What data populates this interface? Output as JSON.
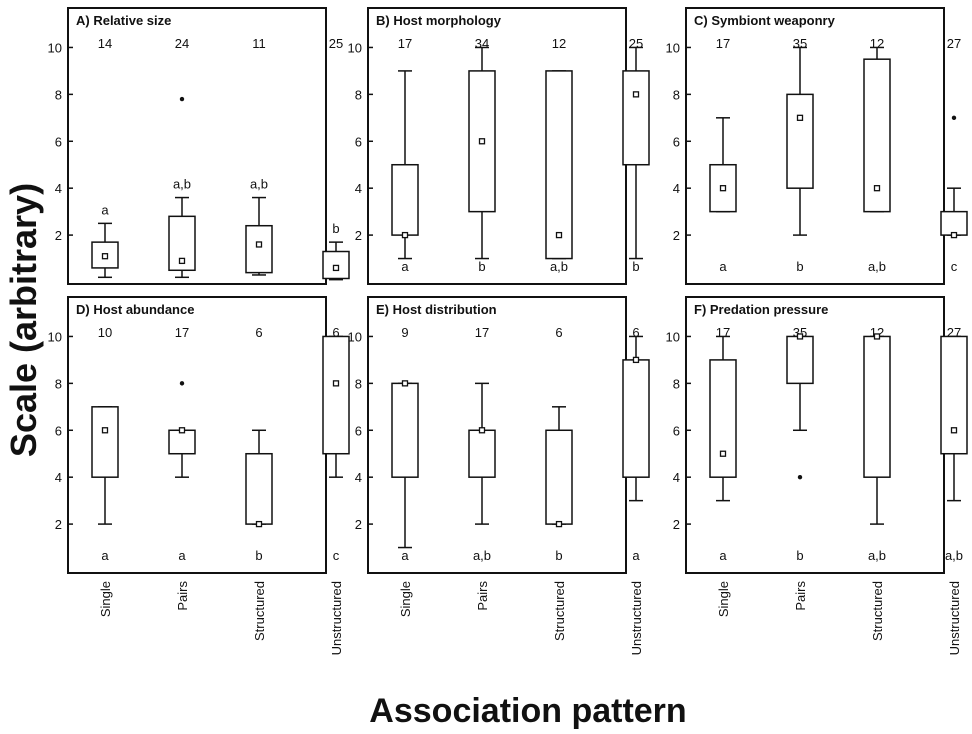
{
  "figure": {
    "ylabel": "Scale (arbitrary)",
    "xlabel": "Association pattern",
    "categories": [
      "Single",
      "Pairs",
      "Structured",
      "Unstructured"
    ]
  },
  "chart_data": [
    {
      "type": "box",
      "title": "A) Relative size",
      "categories": [
        "Single",
        "Pairs",
        "Structured",
        "Unstructured"
      ],
      "ylim": [
        0,
        11
      ],
      "yticks": [
        2,
        4,
        6,
        8,
        10
      ],
      "sample_sizes": [
        "14",
        "24",
        "11",
        "25"
      ],
      "significance_letters": [
        "a",
        "a,b",
        "a,b",
        "b"
      ],
      "letters_position": "top",
      "boxes": [
        {
          "min": 0.2,
          "q1": 0.6,
          "q3": 1.7,
          "max": 2.5,
          "median": 1.1,
          "outliers": []
        },
        {
          "min": 0.2,
          "q1": 0.5,
          "q3": 2.8,
          "max": 3.6,
          "median": 0.9,
          "outliers": [
            7.8
          ]
        },
        {
          "min": 0.3,
          "q1": 0.4,
          "q3": 2.4,
          "max": 3.6,
          "median": 1.6,
          "outliers": []
        },
        {
          "min": 0.1,
          "q1": 0.15,
          "q3": 1.3,
          "max": 1.7,
          "median": 0.6,
          "outliers": []
        }
      ]
    },
    {
      "type": "box",
      "title": "B) Host morphology",
      "categories": [
        "Single",
        "Pairs",
        "Structured",
        "Unstructured"
      ],
      "ylim": [
        0,
        11
      ],
      "yticks": [
        2,
        4,
        6,
        8,
        10
      ],
      "sample_sizes": [
        "17",
        "34",
        "12",
        "25"
      ],
      "significance_letters": [
        "a",
        "b",
        "a,b",
        "b"
      ],
      "letters_position": "bottom",
      "boxes": [
        {
          "min": 1,
          "q1": 2,
          "q3": 5,
          "max": 9,
          "median": 2,
          "outliers": []
        },
        {
          "min": 1,
          "q1": 3,
          "q3": 9,
          "max": 10,
          "median": 6,
          "outliers": []
        },
        {
          "min": 1,
          "q1": 1,
          "q3": 9,
          "max": 9,
          "median": 2,
          "outliers": []
        },
        {
          "min": 1,
          "q1": 5,
          "q3": 9,
          "max": 10,
          "median": 8,
          "outliers": []
        }
      ]
    },
    {
      "type": "box",
      "title": "C) Symbiont weaponry",
      "categories": [
        "Single",
        "Pairs",
        "Structured",
        "Unstructured"
      ],
      "ylim": [
        0,
        11
      ],
      "yticks": [
        2,
        4,
        6,
        8,
        10
      ],
      "sample_sizes": [
        "17",
        "35",
        "12",
        "27"
      ],
      "significance_letters": [
        "a",
        "b",
        "a,b",
        "c"
      ],
      "letters_position": "bottom",
      "boxes": [
        {
          "min": 3,
          "q1": 3,
          "q3": 5,
          "max": 7,
          "median": 4,
          "outliers": []
        },
        {
          "min": 2,
          "q1": 4,
          "q3": 8,
          "max": 10,
          "median": 7,
          "outliers": []
        },
        {
          "min": 3,
          "q1": 3,
          "q3": 9.5,
          "max": 10,
          "median": 4,
          "outliers": []
        },
        {
          "min": 2,
          "q1": 2,
          "q3": 3,
          "max": 4,
          "median": 2,
          "outliers": [
            7
          ]
        }
      ]
    },
    {
      "type": "box",
      "title": "D) Host abundance",
      "categories": [
        "Single",
        "Pairs",
        "Structured",
        "Unstructured"
      ],
      "ylim": [
        0,
        11
      ],
      "yticks": [
        2,
        4,
        6,
        8,
        10
      ],
      "sample_sizes": [
        "10",
        "17",
        "6",
        "6"
      ],
      "significance_letters": [
        "a",
        "a",
        "b",
        "c"
      ],
      "letters_position": "bottom",
      "boxes": [
        {
          "min": 2,
          "q1": 4,
          "q3": 7,
          "max": 7,
          "median": 6,
          "outliers": []
        },
        {
          "min": 4,
          "q1": 5,
          "q3": 6,
          "max": 6,
          "median": 6,
          "outliers": [
            8
          ]
        },
        {
          "min": 2,
          "q1": 2,
          "q3": 5,
          "max": 6,
          "median": 2,
          "outliers": []
        },
        {
          "min": 4,
          "q1": 5,
          "q3": 10,
          "max": 10,
          "median": 8,
          "outliers": []
        }
      ]
    },
    {
      "type": "box",
      "title": "E) Host distribution",
      "categories": [
        "Single",
        "Pairs",
        "Structured",
        "Unstructured"
      ],
      "ylim": [
        0,
        11
      ],
      "yticks": [
        2,
        4,
        6,
        8,
        10
      ],
      "sample_sizes": [
        "9",
        "17",
        "6",
        "6"
      ],
      "significance_letters": [
        "a",
        "a,b",
        "b",
        "a"
      ],
      "letters_position": "bottom",
      "boxes": [
        {
          "min": 1,
          "q1": 4,
          "q3": 8,
          "max": 8,
          "median": 8,
          "outliers": []
        },
        {
          "min": 2,
          "q1": 4,
          "q3": 6,
          "max": 8,
          "median": 6,
          "outliers": []
        },
        {
          "min": 2,
          "q1": 2,
          "q3": 6,
          "max": 7,
          "median": 2,
          "outliers": []
        },
        {
          "min": 3,
          "q1": 4,
          "q3": 9,
          "max": 10,
          "median": 9,
          "outliers": []
        }
      ]
    },
    {
      "type": "box",
      "title": "F) Predation pressure",
      "categories": [
        "Single",
        "Pairs",
        "Structured",
        "Unstructured"
      ],
      "ylim": [
        0,
        11
      ],
      "yticks": [
        2,
        4,
        6,
        8,
        10
      ],
      "sample_sizes": [
        "17",
        "35",
        "12",
        "27"
      ],
      "significance_letters": [
        "a",
        "b",
        "a,b",
        "a,b"
      ],
      "letters_position": "bottom",
      "boxes": [
        {
          "min": 3,
          "q1": 4,
          "q3": 9,
          "max": 10,
          "median": 5,
          "outliers": []
        },
        {
          "min": 6,
          "q1": 8,
          "q3": 10,
          "max": 10,
          "median": 10,
          "outliers": [
            4
          ]
        },
        {
          "min": 2,
          "q1": 4,
          "q3": 10,
          "max": 10,
          "median": 10,
          "outliers": []
        },
        {
          "min": 3,
          "q1": 5,
          "q3": 10,
          "max": 10,
          "median": 6,
          "outliers": []
        }
      ]
    }
  ]
}
